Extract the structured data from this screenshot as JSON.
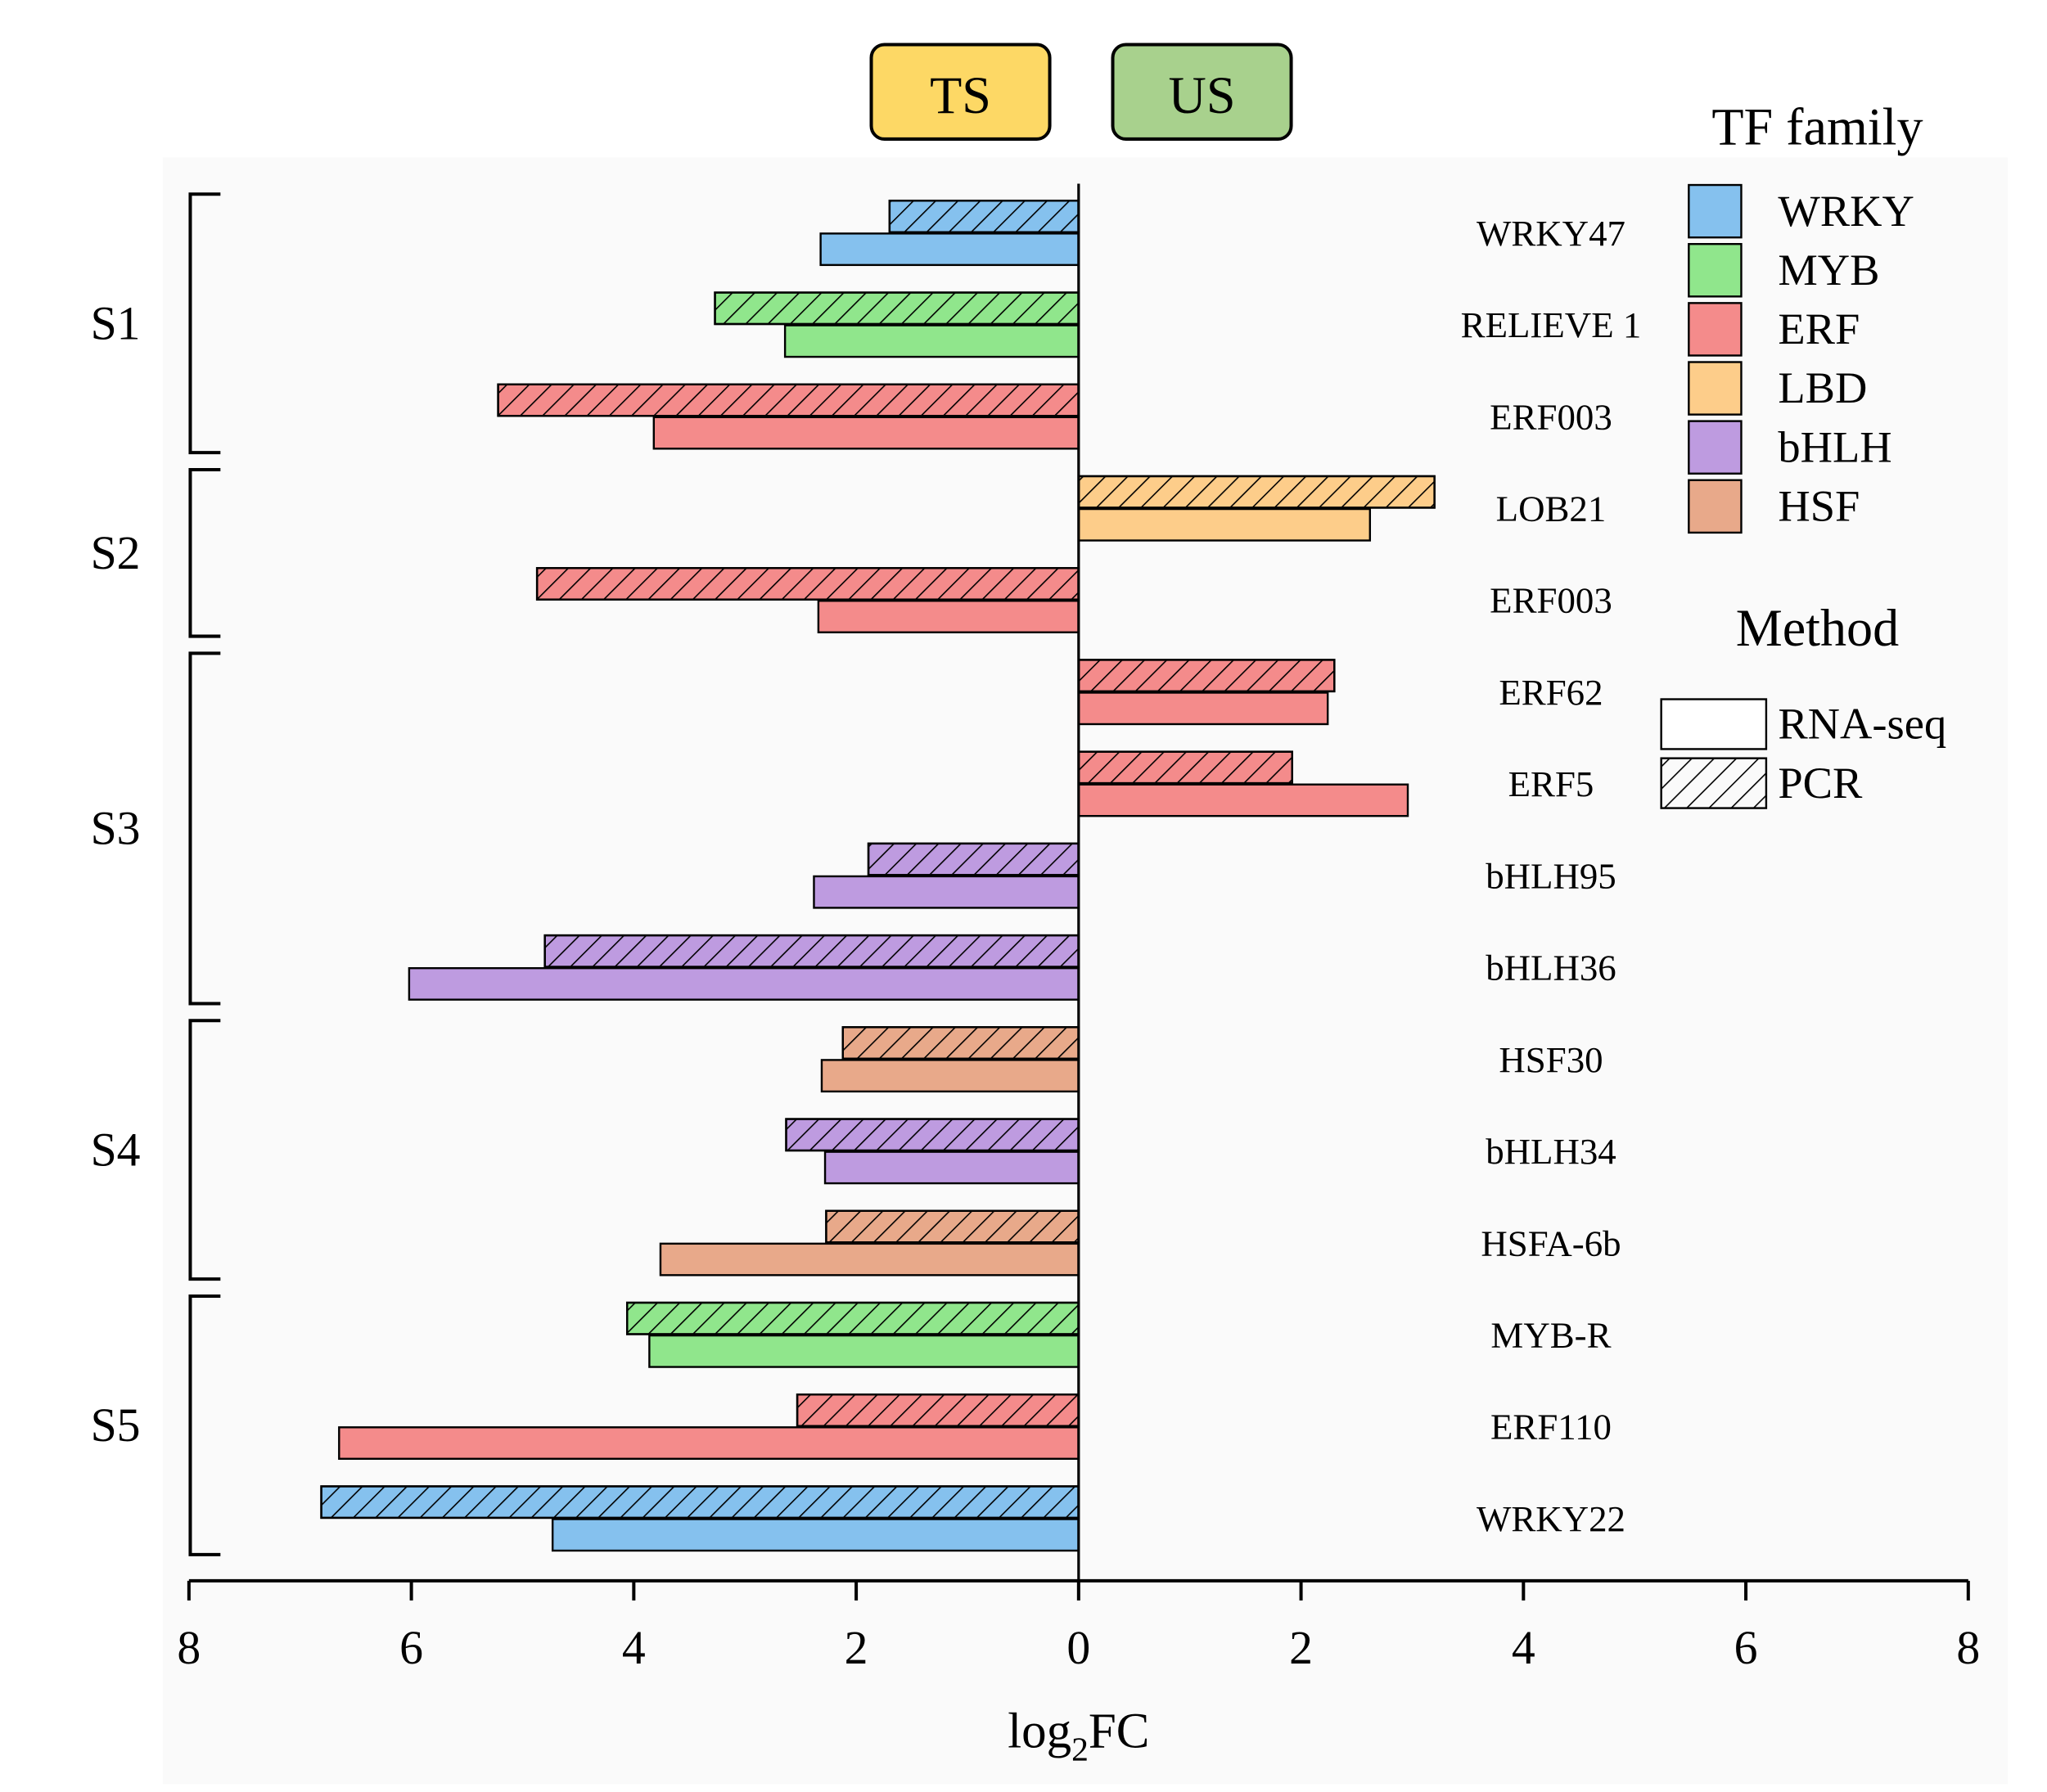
{
  "chart_data": {
    "type": "bar",
    "orientation": "horizontal",
    "xlabel": "log2FC",
    "xlabel_main": "log",
    "xlabel_sub": "2",
    "xlabel_tail": "FC",
    "xlim": [
      -8,
      8
    ],
    "xticks": [
      -8,
      -6,
      -4,
      -2,
      0,
      2,
      4,
      6,
      8
    ],
    "xtick_labels": [
      "8",
      "6",
      "4",
      "2",
      "0",
      "2",
      "4",
      "6",
      "8"
    ],
    "direction_labels": {
      "left": "TS",
      "right": "US"
    },
    "direction_colors": {
      "TS": "#FDD865",
      "US": "#A8D18D"
    },
    "genes": [
      {
        "name": "WRKY47",
        "family": "WRKY",
        "group": "S1",
        "rna_seq": -2.32,
        "pcr": -1.7
      },
      {
        "name": "RELIEVE 1",
        "family": "MYB",
        "group": "S1",
        "rna_seq": -2.64,
        "pcr": -3.27
      },
      {
        "name": "ERF003",
        "family": "ERF",
        "group": "S1",
        "rna_seq": -3.82,
        "pcr": -5.22
      },
      {
        "name": "LOB21",
        "family": "LBD",
        "group": "S2",
        "rna_seq": 2.62,
        "pcr": 3.2
      },
      {
        "name": "ERF003",
        "family": "ERF",
        "group": "S2",
        "rna_seq": -2.34,
        "pcr": -4.87
      },
      {
        "name": "ERF62",
        "family": "ERF",
        "group": "S3",
        "rna_seq": 2.24,
        "pcr": 2.3
      },
      {
        "name": "ERF5",
        "family": "ERF",
        "group": "S3",
        "rna_seq": 2.96,
        "pcr": 1.92
      },
      {
        "name": "bHLH95",
        "family": "bHLH",
        "group": "S3",
        "rna_seq": -2.38,
        "pcr": -1.89
      },
      {
        "name": "bHLH36",
        "family": "bHLH",
        "group": "S3",
        "rna_seq": -6.02,
        "pcr": -4.8
      },
      {
        "name": "HSF30",
        "family": "HSF",
        "group": "S4",
        "rna_seq": -2.31,
        "pcr": -2.12
      },
      {
        "name": "bHLH34",
        "family": "bHLH",
        "group": "S4",
        "rna_seq": -2.28,
        "pcr": -2.63
      },
      {
        "name": "HSFA-6b",
        "family": "HSF",
        "group": "S4",
        "rna_seq": -3.76,
        "pcr": -2.27
      },
      {
        "name": "MYB-R",
        "family": "MYB",
        "group": "S5",
        "rna_seq": -3.86,
        "pcr": -4.06
      },
      {
        "name": "ERF110",
        "family": "ERF",
        "group": "S5",
        "rna_seq": -6.65,
        "pcr": -2.53
      },
      {
        "name": "WRKY22",
        "family": "WRKY",
        "group": "S5",
        "rna_seq": -4.73,
        "pcr": -6.81
      }
    ],
    "groups": [
      {
        "label": "S1",
        "first": 0,
        "last": 2
      },
      {
        "label": "S2",
        "first": 3,
        "last": 4
      },
      {
        "label": "S3",
        "first": 5,
        "last": 8
      },
      {
        "label": "S4",
        "first": 9,
        "last": 11
      },
      {
        "label": "S5",
        "first": 12,
        "last": 14
      }
    ],
    "legend_family": {
      "title": "TF family",
      "entries": [
        {
          "label": "WRKY",
          "color": "#85C1EE"
        },
        {
          "label": "MYB",
          "color": "#90E68C"
        },
        {
          "label": "ERF",
          "color": "#F48B8B"
        },
        {
          "label": "LBD",
          "color": "#FDCD8A"
        },
        {
          "label": "bHLH",
          "color": "#BE9BE0"
        },
        {
          "label": "HSF",
          "color": "#E8A98A"
        }
      ]
    },
    "legend_method": {
      "title": "Method",
      "entries": [
        {
          "label": "RNA-seq",
          "style": "solid"
        },
        {
          "label": "PCR",
          "style": "hatched"
        }
      ]
    },
    "legend_placement": "right"
  }
}
